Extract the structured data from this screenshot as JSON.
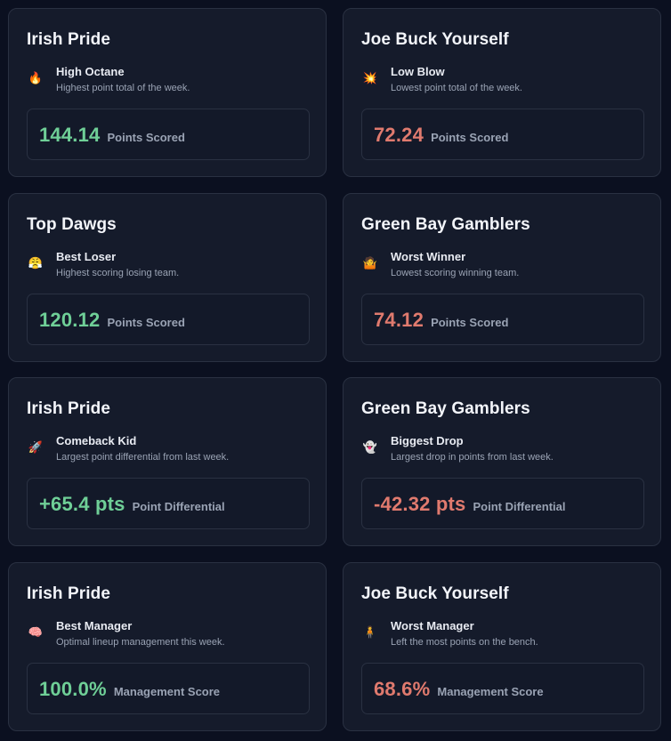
{
  "colors": {
    "background": "#0b1020",
    "card": "#151b2b",
    "border": "#2a3142",
    "positive": "#6fcf97",
    "negative": "#e07a6e"
  },
  "cards": [
    {
      "team": "Irish Pride",
      "icon": "fire-icon",
      "glyph": "🔥",
      "award": "High Octane",
      "description": "Highest point total of the week.",
      "value": "144.14",
      "label": "Points Scored",
      "tone": "good"
    },
    {
      "team": "Joe Buck Yourself",
      "icon": "collision-icon",
      "glyph": "💥",
      "award": "Low Blow",
      "description": "Lowest point total of the week.",
      "value": "72.24",
      "label": "Points Scored",
      "tone": "bad"
    },
    {
      "team": "Top Dawgs",
      "icon": "persevering-face-icon",
      "glyph": "😤",
      "award": "Best Loser",
      "description": "Highest scoring losing team.",
      "value": "120.12",
      "label": "Points Scored",
      "tone": "good"
    },
    {
      "team": "Green Bay Gamblers",
      "icon": "shrug-icon",
      "glyph": "🤷",
      "award": "Worst Winner",
      "description": "Lowest scoring winning team.",
      "value": "74.12",
      "label": "Points Scored",
      "tone": "bad"
    },
    {
      "team": "Irish Pride",
      "icon": "rocket-icon",
      "glyph": "🚀",
      "award": "Comeback Kid",
      "description": "Largest point differential from last week.",
      "value": "+65.4 pts",
      "label": "Point Differential",
      "tone": "good"
    },
    {
      "team": "Green Bay Gamblers",
      "icon": "ghost-icon",
      "glyph": "👻",
      "award": "Biggest Drop",
      "description": "Largest drop in points from last week.",
      "value": "-42.32 pts",
      "label": "Point Differential",
      "tone": "bad"
    },
    {
      "team": "Irish Pride",
      "icon": "brain-icon",
      "glyph": "🧠",
      "award": "Best Manager",
      "description": "Optimal lineup management this week.",
      "value": "100.0%",
      "label": "Management Score",
      "tone": "good"
    },
    {
      "team": "Joe Buck Yourself",
      "icon": "person-icon",
      "glyph": "🧍",
      "award": "Worst Manager",
      "description": "Left the most points on the bench.",
      "value": "68.6%",
      "label": "Management Score",
      "tone": "bad"
    }
  ]
}
